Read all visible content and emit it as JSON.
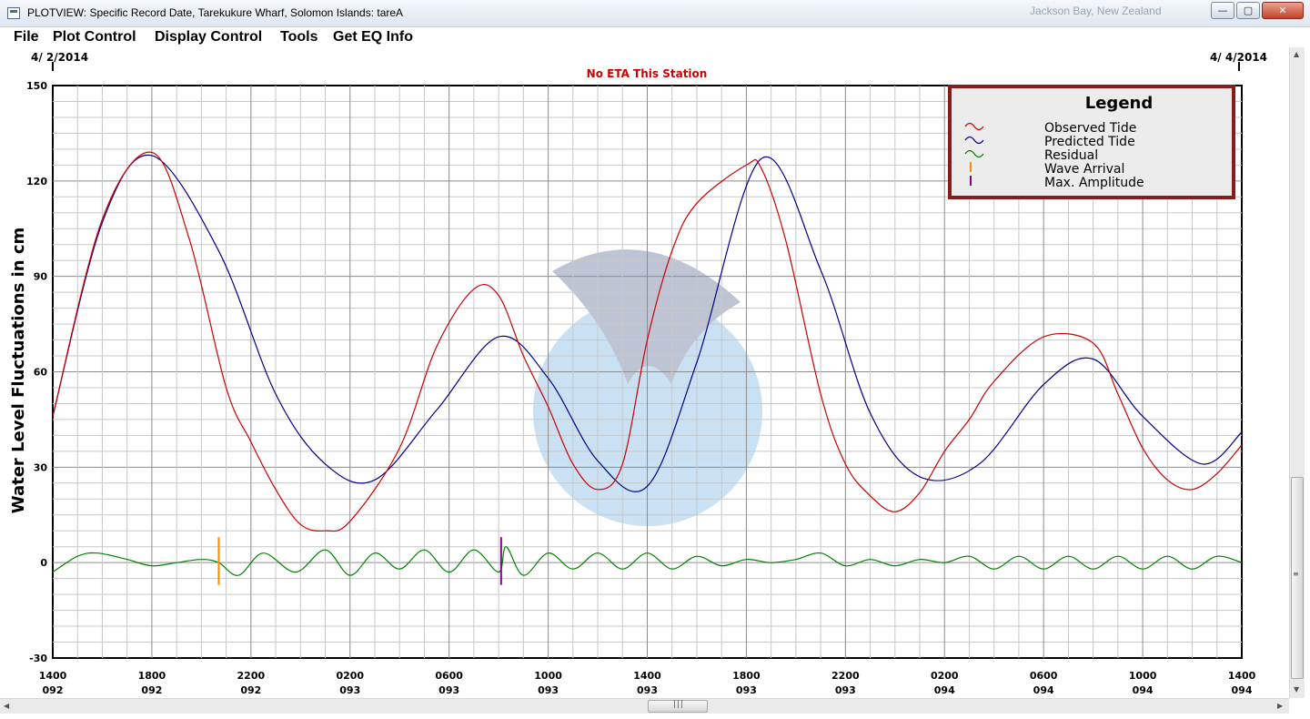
{
  "window": {
    "title": "PLOTVIEW: Specific Record Date, Tarekukure Wharf, Solomon Islands: tareA",
    "background_window_title": "Jackson Bay, New Zealand",
    "buttons": {
      "minimize": "—",
      "maximize": "▢",
      "close": "✕"
    }
  },
  "menu": {
    "items": [
      {
        "label": "File"
      },
      {
        "label": "Plot Control"
      },
      {
        "label": "Display Control"
      },
      {
        "label": "Tools"
      },
      {
        "label": "Get EQ Info"
      }
    ]
  },
  "chart_data": {
    "type": "line",
    "title": "No ETA This Station",
    "date_left": "4/ 2/2014",
    "date_right": "4/ 4/2014",
    "ylabel": "Water Level Fluctuations in cm",
    "ylim": [
      -30,
      150
    ],
    "yticks": [
      -30,
      0,
      30,
      60,
      90,
      120,
      150
    ],
    "x_range_hours": [
      0,
      48
    ],
    "xticks": [
      {
        "time": "1400",
        "day": "092"
      },
      {
        "time": "1800",
        "day": "092"
      },
      {
        "time": "2200",
        "day": "092"
      },
      {
        "time": "0200",
        "day": "093"
      },
      {
        "time": "0600",
        "day": "093"
      },
      {
        "time": "1000",
        "day": "093"
      },
      {
        "time": "1400",
        "day": "093"
      },
      {
        "time": "1800",
        "day": "093"
      },
      {
        "time": "2200",
        "day": "093"
      },
      {
        "time": "0200",
        "day": "094"
      },
      {
        "time": "0600",
        "day": "094"
      },
      {
        "time": "1000",
        "day": "094"
      },
      {
        "time": "1400",
        "day": "094"
      }
    ],
    "grid": true,
    "legend": {
      "title": "Legend",
      "placement": "top-right",
      "entries": [
        {
          "label": "Observed Tide",
          "color": "#cc0000",
          "symbol": "wave"
        },
        {
          "label": "Predicted Tide",
          "color": "#00008b",
          "symbol": "wave"
        },
        {
          "label": "Residual",
          "color": "#008000",
          "symbol": "wave"
        },
        {
          "label": "Wave Arrival",
          "color": "#ff8c00",
          "symbol": "bar"
        },
        {
          "label": "Max. Amplitude",
          "color": "#8b008b",
          "symbol": "bar"
        }
      ]
    },
    "series": [
      {
        "name": "Predicted Tide",
        "color": "#00008b",
        "x": [
          0,
          2,
          4,
          6.7,
          9,
          11,
          13,
          15.5,
          18,
          20,
          22,
          24,
          26,
          28.6,
          31,
          33,
          35,
          37.4,
          40,
          42,
          44,
          46.4,
          48
        ],
        "y": [
          46,
          107,
          128,
          98,
          53,
          31,
          26,
          48,
          71,
          58,
          32,
          24,
          63,
          127,
          92,
          47,
          27,
          31,
          56,
          64,
          46,
          31,
          41
        ]
      },
      {
        "name": "Observed Tide",
        "color": "#cc0000",
        "x": [
          0,
          2,
          4,
          5.5,
          7,
          8,
          9,
          10,
          11,
          12,
          14,
          15.5,
          17,
          18,
          19,
          20,
          21,
          22,
          23,
          24,
          25,
          26,
          28,
          28.6,
          29.6,
          31,
          32,
          33,
          34,
          35,
          36,
          37,
          38,
          40,
          42,
          43,
          44,
          45,
          46,
          47,
          48
        ],
        "y": [
          46,
          108,
          129,
          102,
          55,
          38,
          23,
          12,
          10,
          13,
          36,
          68,
          86,
          84,
          65,
          49,
          31,
          23,
          31,
          70,
          98,
          113,
          125,
          124,
          101,
          53,
          31,
          21,
          16,
          22,
          35,
          45,
          57,
          71,
          69,
          53,
          36,
          26,
          23,
          28,
          37
        ]
      },
      {
        "name": "Residual",
        "color": "#008000",
        "x": [
          0,
          1,
          1.8,
          3,
          4,
          5,
          6,
          6.7,
          7.5,
          8.5,
          9.8,
          11,
          12,
          13,
          14,
          15,
          16,
          17,
          18,
          18.3,
          19,
          20,
          21,
          22,
          23,
          24,
          25,
          26,
          27,
          28,
          29,
          30,
          31,
          32,
          33,
          34,
          35,
          36,
          37,
          38,
          39,
          40,
          41,
          42,
          43,
          44,
          45,
          46,
          47,
          48
        ],
        "y": [
          -3,
          2,
          3,
          1,
          -1,
          0,
          1,
          0,
          -4,
          3,
          -3,
          4,
          -4,
          3,
          -2,
          4,
          -3,
          4,
          -3,
          5,
          -4,
          3,
          -2,
          3,
          -2,
          3,
          -2,
          2,
          -1,
          1,
          0,
          1,
          3,
          -1,
          1,
          -1,
          1,
          0,
          2,
          -2,
          2,
          -2,
          2,
          -2,
          2,
          -2,
          2,
          -2,
          2,
          0
        ]
      }
    ],
    "markers": [
      {
        "name": "Wave Arrival",
        "x": 6.7,
        "y_range": [
          -7,
          8
        ],
        "color": "#ff8c00"
      },
      {
        "name": "Max. Amplitude",
        "x": 18.1,
        "y_range": [
          -7,
          8
        ],
        "color": "#8b008b"
      }
    ]
  }
}
